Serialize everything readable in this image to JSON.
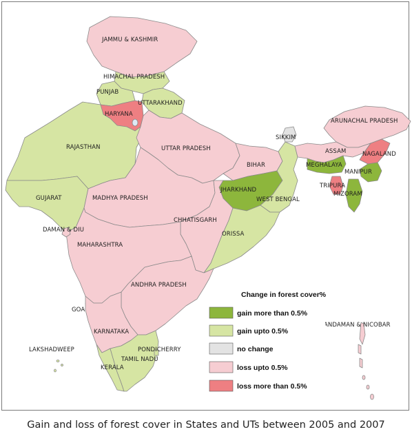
{
  "caption": "Gain and loss of forest cover in States and UTs between 2005 and 2007",
  "legend": {
    "title": "Change in forest cover%",
    "items": [
      {
        "label": "gain more than 0.5%",
        "color": "#8db63c",
        "category": "gain_more"
      },
      {
        "label": "gain upto 0.5%",
        "color": "#d6e5a3",
        "category": "gain_upto"
      },
      {
        "label": "no change",
        "color": "#e3e3e3",
        "category": "no_change"
      },
      {
        "label": "loss upto 0.5%",
        "color": "#f6cdd2",
        "category": "loss_upto"
      },
      {
        "label": "loss more than 0.5%",
        "color": "#ee7f82",
        "category": "loss_more"
      }
    ]
  },
  "states": {
    "jammu_kashmir": {
      "label": "JAMMU & KASHMIR",
      "category": "loss_upto"
    },
    "himachal_pradesh": {
      "label": "HIMACHAL PRADESH",
      "category": "gain_upto"
    },
    "punjab": {
      "label": "PUNJAB",
      "category": "gain_upto"
    },
    "uttarakhand": {
      "label": "UTTARAKHAND",
      "category": "gain_upto"
    },
    "haryana": {
      "label": "HARYANA",
      "category": "loss_more"
    },
    "rajasthan": {
      "label": "RAJASTHAN",
      "category": "gain_upto"
    },
    "uttar_pradesh": {
      "label": "UTTAR PRADESH",
      "category": "loss_upto"
    },
    "sikkim": {
      "label": "SIKKIM",
      "category": "no_change"
    },
    "arunachal_pradesh": {
      "label": "ARUNACHAL PRADESH",
      "category": "loss_upto"
    },
    "assam": {
      "label": "ASSAM",
      "category": "loss_upto"
    },
    "nagaland": {
      "label": "NAGALAND",
      "category": "loss_more"
    },
    "meghalaya": {
      "label": "MEGHALAYA",
      "category": "gain_more"
    },
    "manipur": {
      "label": "MANIPUR",
      "category": "gain_more"
    },
    "tripura": {
      "label": "TRIPURA",
      "category": "loss_more"
    },
    "mizoram": {
      "label": "MIZORAM",
      "category": "gain_more"
    },
    "bihar": {
      "label": "BIHAR",
      "category": "loss_upto"
    },
    "jharkhand": {
      "label": "JHARKHAND",
      "category": "gain_more"
    },
    "west_bengal": {
      "label": "WEST BENGAL",
      "category": "gain_upto"
    },
    "gujarat": {
      "label": "GUJARAT",
      "category": "gain_upto"
    },
    "madhya_pradesh": {
      "label": "MADHYA PRADESH",
      "category": "loss_upto"
    },
    "chhattisgarh": {
      "label": "CHHATISGARH",
      "category": "loss_upto"
    },
    "orissa": {
      "label": "ORISSA",
      "category": "gain_upto"
    },
    "daman_diu": {
      "label": "DAMAN & DIU",
      "category": "loss_upto"
    },
    "maharashtra": {
      "label": "MAHARASHTRA",
      "category": "loss_upto"
    },
    "andhra_pradesh": {
      "label": "ANDHRA PRADESH",
      "category": "loss_upto"
    },
    "goa": {
      "label": "GOA",
      "category": "loss_upto"
    },
    "karnataka": {
      "label": "KARNATAKA",
      "category": "loss_upto"
    },
    "lakshadweep": {
      "label": "LAKSHADWEEP",
      "category": "gain_upto"
    },
    "pondicherry": {
      "label": "PONDICHERRY",
      "category": "gain_upto"
    },
    "tamil_nadu": {
      "label": "TAMIL NADU",
      "category": "gain_upto"
    },
    "kerala": {
      "label": "KERALA",
      "category": "gain_upto"
    },
    "andaman_nicobar": {
      "label": "ANDAMAN & NICOBAR",
      "category": "loss_upto"
    }
  }
}
